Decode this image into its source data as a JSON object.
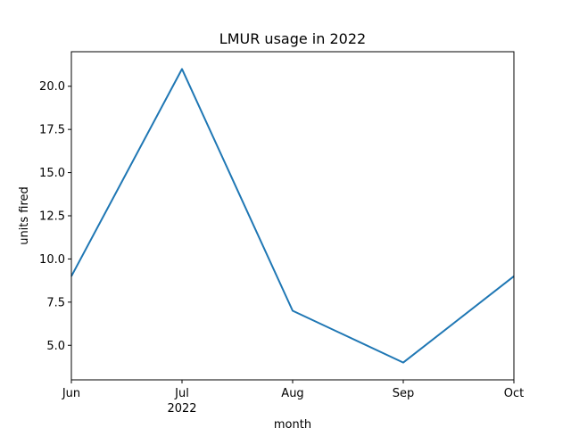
{
  "chart_data": {
    "type": "line",
    "title": "LMUR usage in 2022",
    "xlabel": "month",
    "ylabel": "units fired",
    "categories": [
      "Jun",
      "Jul",
      "Aug",
      "Sep",
      "Oct"
    ],
    "year_label": "2022",
    "series": [
      {
        "values": [
          9,
          21,
          7,
          4,
          9
        ],
        "color": "#1f77b4"
      }
    ],
    "ylim": [
      3,
      22
    ],
    "yticks": [
      "5.0",
      "7.5",
      "10.0",
      "12.5",
      "15.0",
      "17.5",
      "20.0"
    ],
    "grid": false
  }
}
